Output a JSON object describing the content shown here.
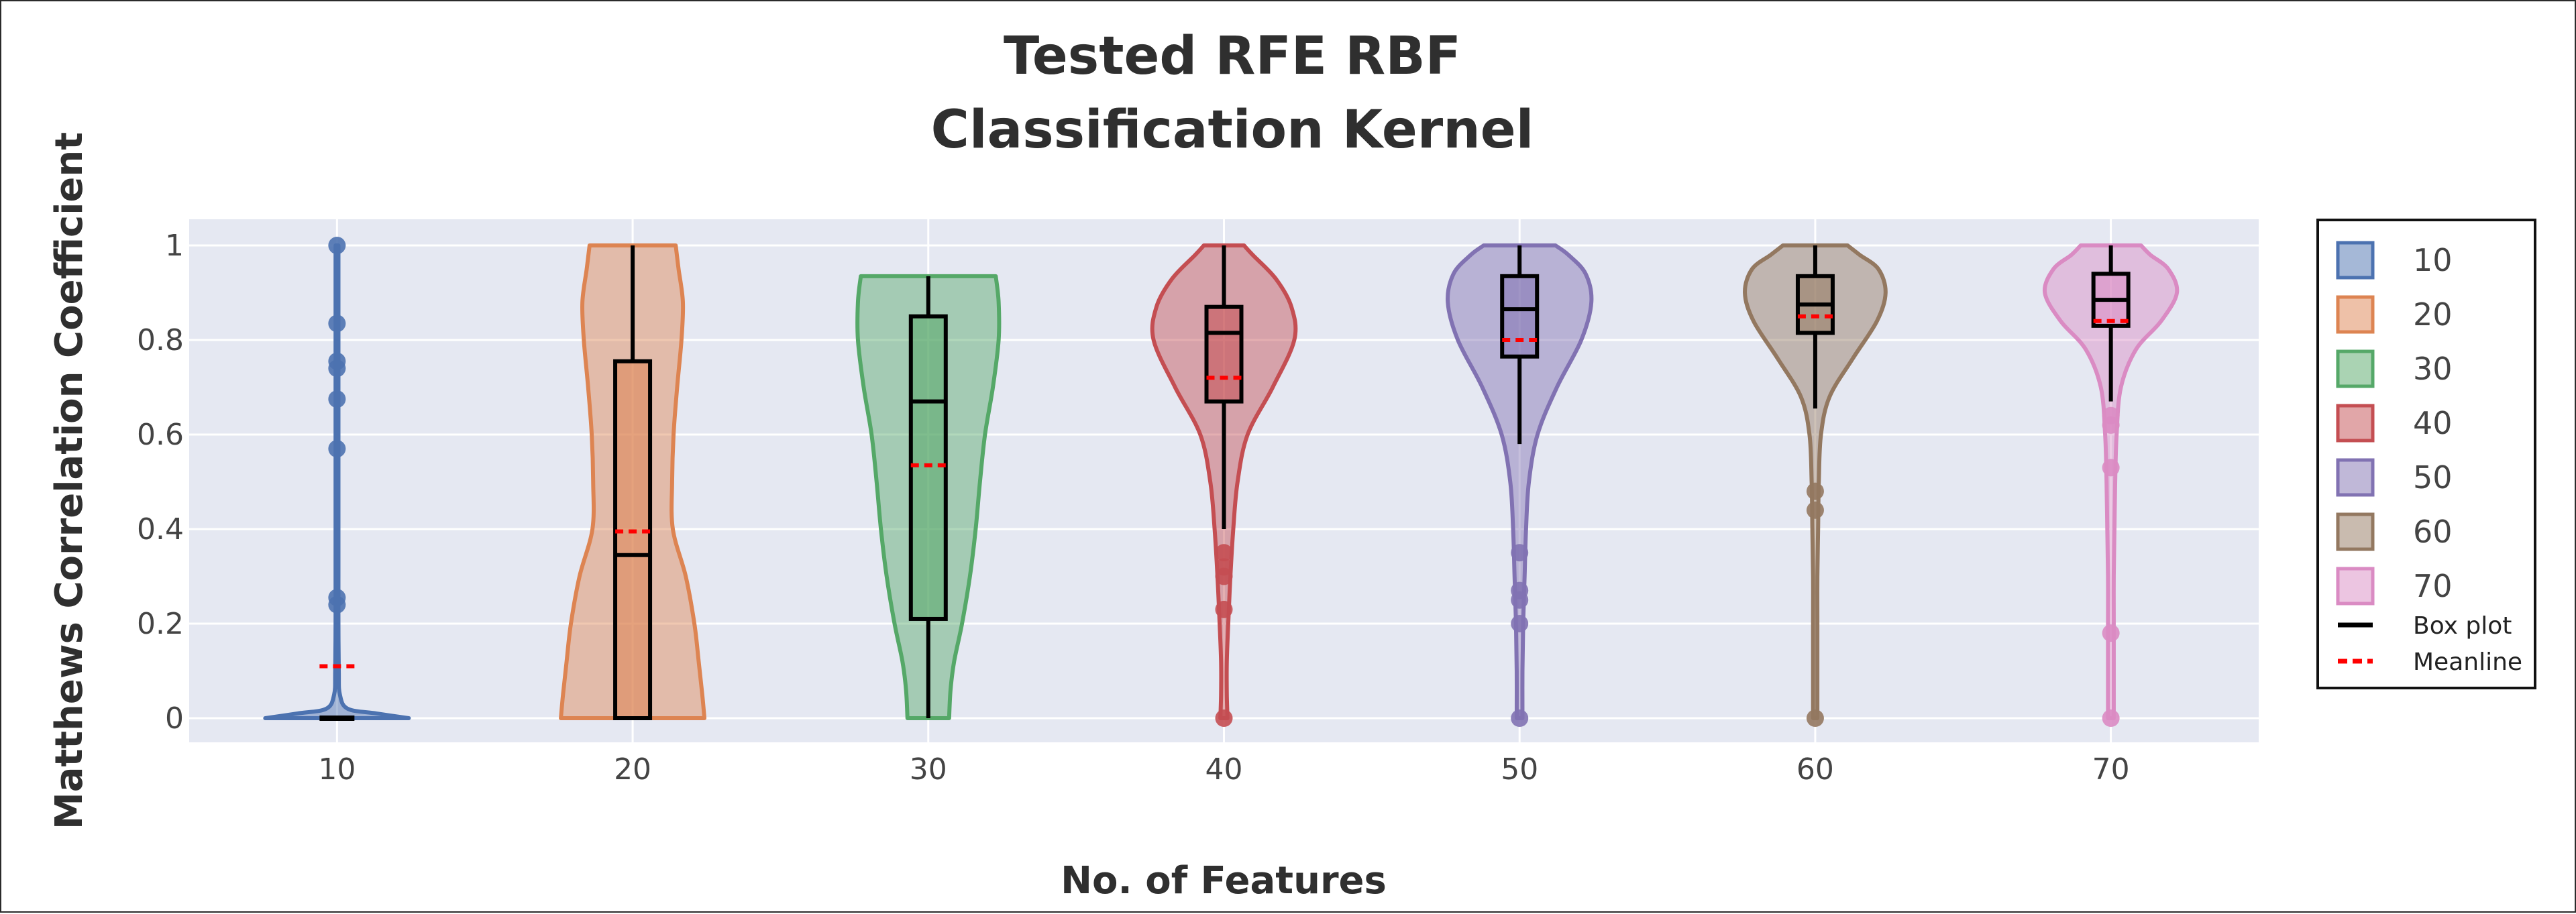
{
  "chart_data": {
    "type": "violin",
    "title": [
      "Tested RFE RBF",
      "Classification Kernel"
    ],
    "xlabel": "No. of Features",
    "ylabel": "Matthews Correlation Coefficient",
    "ylim": [
      -0.05,
      1.05
    ],
    "yticks": [
      0,
      0.2,
      0.4,
      0.6,
      0.8,
      1
    ],
    "ytick_labels": [
      "0",
      "0.2",
      "0.4",
      "0.6",
      "0.8",
      "1"
    ],
    "categories": [
      "10",
      "20",
      "30",
      "40",
      "50",
      "60",
      "70"
    ],
    "legend_position": "right",
    "series": [
      {
        "name": "10",
        "color": "#4c72b0",
        "min": 0,
        "q1": 0,
        "median": 0,
        "q3": 0,
        "max": 0,
        "mean": 0.11,
        "outliers": [
          1.0,
          0.835,
          0.755,
          0.74,
          0.675,
          0.57,
          0.255,
          0.24
        ],
        "density": [
          [
            0,
            1
          ],
          [
            0.01,
            0.55
          ],
          [
            0.02,
            0.15
          ],
          [
            0.05,
            0.04
          ],
          [
            0.1,
            0.025
          ],
          [
            0.2,
            0.02
          ],
          [
            0.3,
            0.02
          ],
          [
            0.5,
            0.02
          ],
          [
            0.7,
            0.02
          ],
          [
            0.9,
            0.02
          ],
          [
            1,
            0.02
          ]
        ]
      },
      {
        "name": "20",
        "color": "#dd8452",
        "min": 0,
        "q1": 0,
        "median": 0.345,
        "q3": 0.755,
        "max": 1.0,
        "mean": 0.395,
        "outliers": [],
        "density": [
          [
            0,
            1
          ],
          [
            0.05,
            0.97
          ],
          [
            0.12,
            0.92
          ],
          [
            0.2,
            0.86
          ],
          [
            0.3,
            0.74
          ],
          [
            0.4,
            0.56
          ],
          [
            0.5,
            0.55
          ],
          [
            0.6,
            0.57
          ],
          [
            0.7,
            0.62
          ],
          [
            0.8,
            0.68
          ],
          [
            0.88,
            0.7
          ],
          [
            0.95,
            0.64
          ],
          [
            1,
            0.6
          ]
        ]
      },
      {
        "name": "30",
        "color": "#55a868",
        "min": 0,
        "q1": 0.21,
        "median": 0.67,
        "q3": 0.85,
        "max": 0.935,
        "mean": 0.535,
        "outliers": [],
        "density": [
          [
            0,
            0.29
          ],
          [
            0.06,
            0.31
          ],
          [
            0.12,
            0.36
          ],
          [
            0.2,
            0.47
          ],
          [
            0.3,
            0.58
          ],
          [
            0.4,
            0.66
          ],
          [
            0.5,
            0.72
          ],
          [
            0.6,
            0.79
          ],
          [
            0.7,
            0.9
          ],
          [
            0.8,
            0.98
          ],
          [
            0.88,
            0.98
          ],
          [
            0.935,
            0.94
          ]
        ]
      },
      {
        "name": "40",
        "color": "#c44e52",
        "min": 0.4,
        "q1": 0.67,
        "median": 0.815,
        "q3": 0.87,
        "max": 1.0,
        "mean": 0.72,
        "outliers": [
          0.35,
          0.32,
          0.3,
          0.23,
          0.0
        ],
        "density": [
          [
            0,
            0.05
          ],
          [
            0.05,
            0.04
          ],
          [
            0.12,
            0.04
          ],
          [
            0.2,
            0.06
          ],
          [
            0.3,
            0.09
          ],
          [
            0.4,
            0.13
          ],
          [
            0.5,
            0.19
          ],
          [
            0.6,
            0.33
          ],
          [
            0.7,
            0.68
          ],
          [
            0.8,
            0.98
          ],
          [
            0.87,
            0.94
          ],
          [
            0.93,
            0.72
          ],
          [
            0.98,
            0.4
          ],
          [
            1,
            0.28
          ]
        ]
      },
      {
        "name": "50",
        "color": "#8172b2",
        "min": 0.58,
        "q1": 0.765,
        "median": 0.865,
        "q3": 0.935,
        "max": 1.0,
        "mean": 0.8,
        "outliers": [
          0.35,
          0.27,
          0.25,
          0.2,
          0.0
        ],
        "density": [
          [
            0,
            0.04
          ],
          [
            0.1,
            0.04
          ],
          [
            0.2,
            0.05
          ],
          [
            0.3,
            0.07
          ],
          [
            0.4,
            0.09
          ],
          [
            0.5,
            0.13
          ],
          [
            0.6,
            0.25
          ],
          [
            0.7,
            0.52
          ],
          [
            0.8,
            0.86
          ],
          [
            0.88,
            1
          ],
          [
            0.94,
            0.92
          ],
          [
            0.98,
            0.68
          ],
          [
            1,
            0.5
          ]
        ]
      },
      {
        "name": "60",
        "color": "#937860",
        "min": 0.655,
        "q1": 0.815,
        "median": 0.875,
        "q3": 0.935,
        "max": 1.0,
        "mean": 0.85,
        "outliers": [
          0.48,
          0.44,
          0.0
        ],
        "density": [
          [
            0,
            0.03
          ],
          [
            0.1,
            0.03
          ],
          [
            0.2,
            0.03
          ],
          [
            0.3,
            0.03
          ],
          [
            0.4,
            0.04
          ],
          [
            0.5,
            0.05
          ],
          [
            0.6,
            0.08
          ],
          [
            0.68,
            0.2
          ],
          [
            0.76,
            0.52
          ],
          [
            0.84,
            0.86
          ],
          [
            0.9,
            0.98
          ],
          [
            0.95,
            0.88
          ],
          [
            0.98,
            0.62
          ],
          [
            1,
            0.45
          ]
        ]
      },
      {
        "name": "70",
        "color": "#da8bc3",
        "min": 0.67,
        "q1": 0.83,
        "median": 0.885,
        "q3": 0.94,
        "max": 1.0,
        "mean": 0.84,
        "outliers": [
          0.64,
          0.62,
          0.53,
          0.18,
          0.0
        ],
        "density": [
          [
            0,
            0.04
          ],
          [
            0.1,
            0.04
          ],
          [
            0.2,
            0.04
          ],
          [
            0.3,
            0.04
          ],
          [
            0.4,
            0.05
          ],
          [
            0.5,
            0.06
          ],
          [
            0.6,
            0.08
          ],
          [
            0.7,
            0.14
          ],
          [
            0.78,
            0.35
          ],
          [
            0.84,
            0.7
          ],
          [
            0.9,
            0.92
          ],
          [
            0.95,
            0.8
          ],
          [
            0.98,
            0.55
          ],
          [
            1,
            0.42
          ]
        ]
      }
    ],
    "legend_extra": [
      {
        "name": "Box plot",
        "style": "solid",
        "color": "#000000"
      },
      {
        "name": "Meanline",
        "style": "dashed",
        "color": "#ff0000"
      }
    ]
  }
}
